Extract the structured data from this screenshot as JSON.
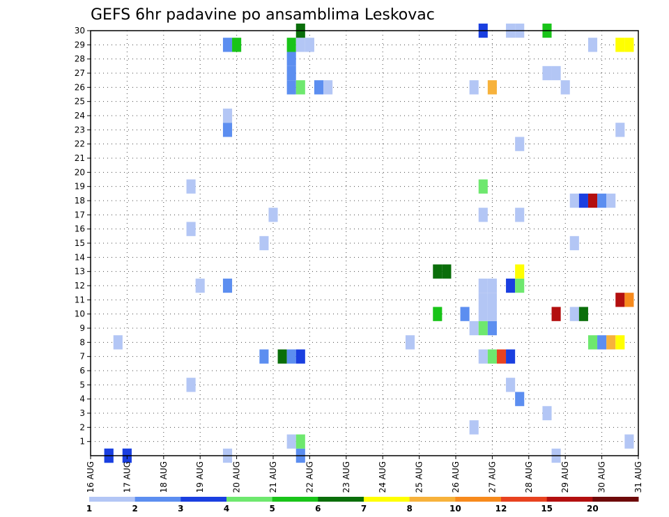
{
  "chart_data": {
    "type": "heatmap",
    "title": "GEFS 6hr padavine po ansamblima Leskovac",
    "x_tick_labels": [
      "16 AUG",
      "17 AUG",
      "18 AUG",
      "19 AUG",
      "20 AUG",
      "21 AUG",
      "22 AUG",
      "23 AUG",
      "24 AUG",
      "25 AUG",
      "26 AUG",
      "27 AUG",
      "28 AUG",
      "29 AUG",
      "30 AUG",
      "31 AUG"
    ],
    "y_tick_labels": [
      "1",
      "2",
      "3",
      "4",
      "5",
      "6",
      "7",
      "8",
      "9",
      "10",
      "11",
      "12",
      "13",
      "14",
      "15",
      "16",
      "17",
      "18",
      "19",
      "20",
      "21",
      "22",
      "23",
      "24",
      "25",
      "26",
      "27",
      "28",
      "29",
      "30"
    ],
    "xlim_days": [
      0,
      15
    ],
    "ylim": [
      0,
      30
    ],
    "grid": true,
    "colorbar": {
      "labels": [
        "1",
        "2",
        "3",
        "4",
        "5",
        "6",
        "7",
        "8",
        "10",
        "12",
        "15",
        "20"
      ],
      "colors": [
        "#b3c6f5",
        "#5c8ef0",
        "#1a3fe0",
        "#6ee86e",
        "#19c419",
        "#0a6e0a",
        "#ffff00",
        "#f7b23b",
        "#f78a1c",
        "#e8421f",
        "#b30f0f",
        "#6e0a0a"
      ]
    },
    "cells": [
      {
        "day": 0.5,
        "m": 0,
        "c": 1
      },
      {
        "day": 0.5,
        "m": 0,
        "c": 2
      },
      {
        "day": 0.5,
        "m": 0,
        "c": 3
      },
      {
        "day": 1.0,
        "m": 0,
        "c": 1
      },
      {
        "day": 1.0,
        "m": 0,
        "c": 2
      },
      {
        "day": 1.0,
        "m": 0,
        "c": 3
      },
      {
        "day": 0.75,
        "m": 8,
        "c": 1
      },
      {
        "day": 2.75,
        "m": 5,
        "c": 1
      },
      {
        "day": 2.75,
        "m": 16,
        "c": 1
      },
      {
        "day": 2.75,
        "m": 19,
        "c": 1
      },
      {
        "day": 3.0,
        "m": 12,
        "c": 1
      },
      {
        "day": 3.75,
        "m": 0,
        "c": 1
      },
      {
        "day": 3.75,
        "m": 12,
        "c": 2
      },
      {
        "day": 3.75,
        "m": 23,
        "c": 2
      },
      {
        "day": 3.75,
        "m": 24,
        "c": 1
      },
      {
        "day": 3.75,
        "m": 29,
        "c": 2
      },
      {
        "day": 4.0,
        "m": 29,
        "c": 5
      },
      {
        "day": 4.75,
        "m": 7,
        "c": 2
      },
      {
        "day": 4.75,
        "m": 15,
        "c": 1
      },
      {
        "day": 5.0,
        "m": 17,
        "c": 1
      },
      {
        "day": 5.25,
        "m": 7,
        "c": 6
      },
      {
        "day": 5.5,
        "m": 1,
        "c": 1
      },
      {
        "day": 5.5,
        "m": 7,
        "c": 2
      },
      {
        "day": 5.5,
        "m": 26,
        "c": 2
      },
      {
        "day": 5.5,
        "m": 27,
        "c": 2
      },
      {
        "day": 5.5,
        "m": 28,
        "c": 2
      },
      {
        "day": 5.5,
        "m": 29,
        "c": 5
      },
      {
        "day": 5.75,
        "m": 0,
        "c": 2
      },
      {
        "day": 5.75,
        "m": 1,
        "c": 4
      },
      {
        "day": 5.75,
        "m": 7,
        "c": 3
      },
      {
        "day": 5.75,
        "m": 26,
        "c": 4
      },
      {
        "day": 5.75,
        "m": 29,
        "c": 1
      },
      {
        "day": 5.75,
        "m": 30,
        "c": 6
      },
      {
        "day": 6.0,
        "m": 29,
        "c": 1
      },
      {
        "day": 6.25,
        "m": 26,
        "c": 2
      },
      {
        "day": 6.5,
        "m": 26,
        "c": 1
      },
      {
        "day": 8.75,
        "m": 8,
        "c": 1
      },
      {
        "day": 9.5,
        "m": 10,
        "c": 5
      },
      {
        "day": 9.5,
        "m": 13,
        "c": 6
      },
      {
        "day": 9.75,
        "m": 13,
        "c": 6
      },
      {
        "day": 10.25,
        "m": 10,
        "c": 2
      },
      {
        "day": 10.5,
        "m": 2,
        "c": 1
      },
      {
        "day": 10.5,
        "m": 9,
        "c": 1
      },
      {
        "day": 10.5,
        "m": 26,
        "c": 1
      },
      {
        "day": 10.75,
        "m": 7,
        "c": 1
      },
      {
        "day": 10.75,
        "m": 9,
        "c": 4
      },
      {
        "day": 10.75,
        "m": 10,
        "c": 1
      },
      {
        "day": 10.75,
        "m": 11,
        "c": 1
      },
      {
        "day": 10.75,
        "m": 12,
        "c": 1
      },
      {
        "day": 10.75,
        "m": 17,
        "c": 1
      },
      {
        "day": 10.75,
        "m": 19,
        "c": 4
      },
      {
        "day": 10.75,
        "m": 30,
        "c": 3
      },
      {
        "day": 11.0,
        "m": 7,
        "c": 4
      },
      {
        "day": 11.0,
        "m": 9,
        "c": 2
      },
      {
        "day": 11.0,
        "m": 10,
        "c": 1
      },
      {
        "day": 11.0,
        "m": 11,
        "c": 1
      },
      {
        "day": 11.0,
        "m": 12,
        "c": 1
      },
      {
        "day": 11.0,
        "m": 26,
        "c": 8
      },
      {
        "day": 11.25,
        "m": 7,
        "c": 10
      },
      {
        "day": 11.5,
        "m": 5,
        "c": 1
      },
      {
        "day": 11.5,
        "m": 7,
        "c": 3
      },
      {
        "day": 11.5,
        "m": 12,
        "c": 3
      },
      {
        "day": 11.5,
        "m": 30,
        "c": 1
      },
      {
        "day": 11.75,
        "m": 4,
        "c": 2
      },
      {
        "day": 11.75,
        "m": 12,
        "c": 4
      },
      {
        "day": 11.75,
        "m": 13,
        "c": 7
      },
      {
        "day": 11.75,
        "m": 17,
        "c": 1
      },
      {
        "day": 11.75,
        "m": 22,
        "c": 1
      },
      {
        "day": 11.75,
        "m": 30,
        "c": 1
      },
      {
        "day": 12.5,
        "m": 3,
        "c": 1
      },
      {
        "day": 12.5,
        "m": 27,
        "c": 1
      },
      {
        "day": 12.5,
        "m": 30,
        "c": 5
      },
      {
        "day": 12.75,
        "m": 0,
        "c": 1
      },
      {
        "day": 12.75,
        "m": 10,
        "c": 11
      },
      {
        "day": 12.75,
        "m": 27,
        "c": 1
      },
      {
        "day": 13.0,
        "m": 26,
        "c": 1
      },
      {
        "day": 13.25,
        "m": 10,
        "c": 1
      },
      {
        "day": 13.25,
        "m": 15,
        "c": 1
      },
      {
        "day": 13.25,
        "m": 18,
        "c": 1
      },
      {
        "day": 13.5,
        "m": 10,
        "c": 6
      },
      {
        "day": 13.5,
        "m": 18,
        "c": 3
      },
      {
        "day": 13.75,
        "m": 8,
        "c": 4
      },
      {
        "day": 13.75,
        "m": 18,
        "c": 11
      },
      {
        "day": 13.75,
        "m": 29,
        "c": 1
      },
      {
        "day": 14.0,
        "m": 8,
        "c": 2
      },
      {
        "day": 14.0,
        "m": 18,
        "c": 2
      },
      {
        "day": 14.25,
        "m": 8,
        "c": 8
      },
      {
        "day": 14.25,
        "m": 18,
        "c": 1
      },
      {
        "day": 14.5,
        "m": 8,
        "c": 7
      },
      {
        "day": 14.5,
        "m": 11,
        "c": 11
      },
      {
        "day": 14.5,
        "m": 23,
        "c": 1
      },
      {
        "day": 14.5,
        "m": 29,
        "c": 7
      },
      {
        "day": 14.75,
        "m": 1,
        "c": 1
      },
      {
        "day": 14.75,
        "m": 11,
        "c": 9
      },
      {
        "day": 14.75,
        "m": 29,
        "c": 7
      }
    ]
  }
}
